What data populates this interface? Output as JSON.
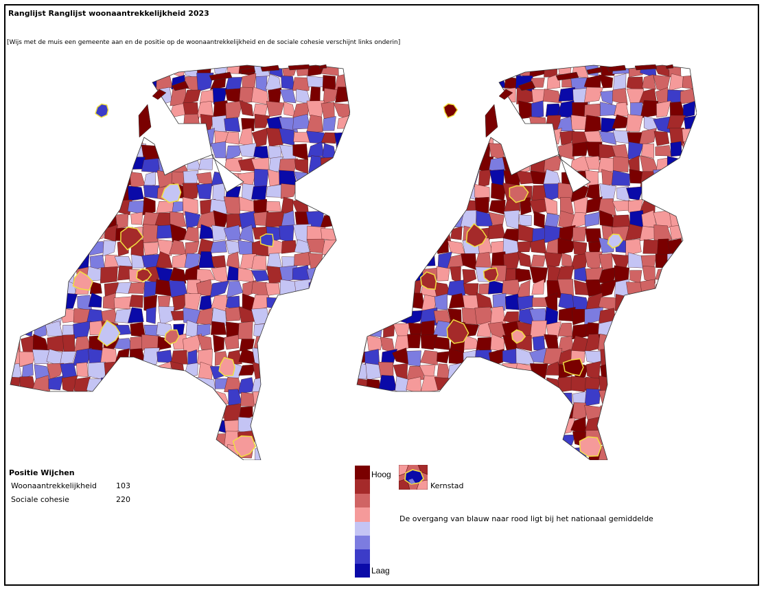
{
  "title": "Ranglijst Ranglijst woonaantrekkelijkheid 2023",
  "hint": "[Wijs met de muis een gemeente aan en de positie op de woonaantrekkelijkheid en de sociale cohesie verschijnt links onderin]",
  "position": {
    "heading": "Positie Wijchen",
    "rows": [
      {
        "label": "Woonaantrekkelijkheid",
        "value": "103"
      },
      {
        "label": "Sociale cohesie",
        "value": "220"
      }
    ]
  },
  "legend": {
    "high_label": "Hoog",
    "low_label": "Laag",
    "scale_colors": [
      "#7a0000",
      "#a52a2a",
      "#d06464",
      "#f59a9a",
      "#c4c4f4",
      "#7c7ce0",
      "#3c3cc8",
      "#0a0aa8"
    ],
    "kernstad_label": "Kernstad",
    "kernstad_border_color": "#f0e040",
    "note": "De overgang van blauw naar rood ligt bij het nationaal gemiddelde"
  },
  "maps": {
    "left_name": "woonaantrekkelijkheid",
    "right_name": "sociale cohesie",
    "left_palette_weights": [
      2,
      3,
      3,
      3,
      3,
      2,
      2,
      1
    ],
    "right_palette_weights": [
      3,
      3,
      3,
      3,
      1,
      1,
      1,
      1
    ]
  }
}
